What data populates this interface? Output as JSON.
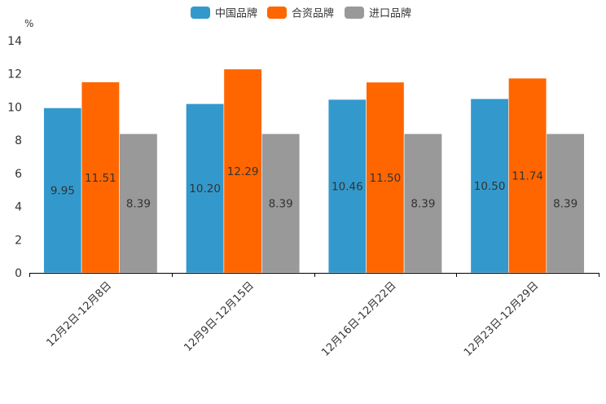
{
  "chart_data": {
    "type": "bar",
    "unit": "%",
    "categories": [
      "12月2日-12月8日",
      "12月9日-12月15日",
      "12月16日-12月22日",
      "12月23日-12月29日"
    ],
    "series": [
      {
        "name": "中国品牌",
        "color": "#3399cc",
        "values": [
          9.95,
          10.2,
          10.46,
          10.5
        ],
        "labels": [
          "9.95",
          "10.20",
          "10.46",
          "10.50"
        ]
      },
      {
        "name": "合资品牌",
        "color": "#ff6600",
        "values": [
          11.51,
          12.29,
          11.5,
          11.74
        ],
        "labels": [
          "11.51",
          "12.29",
          "11.50",
          "11.74"
        ]
      },
      {
        "name": "进口品牌",
        "color": "#999999",
        "values": [
          8.39,
          8.39,
          8.39,
          8.39
        ],
        "labels": [
          "8.39",
          "8.39",
          "8.39",
          "8.39"
        ]
      }
    ],
    "ylim": [
      0,
      14
    ],
    "yticks": [
      "0",
      "2",
      "4",
      "6",
      "8",
      "10",
      "12",
      "14"
    ],
    "legend_position": "top-center",
    "grid": false
  }
}
